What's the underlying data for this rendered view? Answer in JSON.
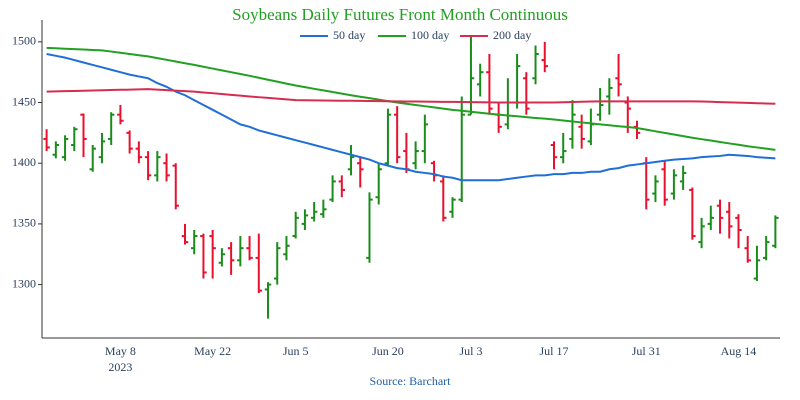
{
  "chart_data": {
    "type": "ohlc",
    "title": "Soybeans Daily Futures Front Month Continuous",
    "source": "Source: Barchart",
    "x_sublabel": "2023",
    "categories": [
      null,
      null,
      null,
      null,
      null,
      null,
      null,
      null,
      "May 8",
      null,
      null,
      null,
      null,
      null,
      null,
      null,
      null,
      null,
      "May 22",
      null,
      null,
      null,
      null,
      null,
      null,
      null,
      null,
      "Jun 5",
      null,
      null,
      null,
      null,
      null,
      null,
      null,
      null,
      null,
      "Jun 20",
      null,
      null,
      null,
      null,
      null,
      null,
      null,
      null,
      "Jul 3",
      null,
      null,
      null,
      null,
      null,
      null,
      null,
      null,
      "Jul 17",
      null,
      null,
      null,
      null,
      null,
      null,
      null,
      null,
      null,
      "Jul 31",
      null,
      null,
      null,
      null,
      null,
      null,
      null,
      null,
      null,
      "Aug 14",
      null,
      null,
      null,
      null
    ],
    "ohlc": {
      "increasing_color": "#1a8c1a",
      "decreasing_color": "#e8112d",
      "open": [
        1420,
        1407,
        1405,
        1415,
        1440,
        1395,
        1405,
        1420,
        1440,
        1425,
        1412,
        1405,
        1390,
        1400,
        1398,
        1340,
        1330,
        1340,
        1340,
        1318,
        1330,
        1320,
        1330,
        1322,
        1296,
        1305,
        1325,
        1340,
        1350,
        1355,
        1358,
        1370,
        1385,
        1395,
        1400,
        1322,
        1372,
        1400,
        1440,
        1410,
        1400,
        1410,
        1400,
        1385,
        1360,
        1370,
        1440,
        1465,
        1475,
        1440,
        1432,
        1450,
        1470,
        1470,
        1485,
        1415,
        1405,
        1420,
        1430,
        1418,
        1440,
        1455,
        1470,
        1450,
        1430,
        1400,
        1375,
        1395,
        1375,
        1385,
        1378,
        1335,
        1350,
        1365,
        1360,
        1355,
        1330,
        1305,
        1322,
        1332
      ],
      "high": [
        1428,
        1418,
        1423,
        1430,
        1441,
        1415,
        1425,
        1442,
        1448,
        1427,
        1418,
        1410,
        1410,
        1408,
        1400,
        1350,
        1345,
        1342,
        1345,
        1330,
        1335,
        1340,
        1340,
        1342,
        1302,
        1335,
        1340,
        1360,
        1362,
        1368,
        1370,
        1390,
        1390,
        1415,
        1405,
        1376,
        1400,
        1445,
        1447,
        1425,
        1418,
        1440,
        1402,
        1390,
        1372,
        1455,
        1505,
        1482,
        1490,
        1450,
        1470,
        1490,
        1475,
        1497,
        1500,
        1418,
        1425,
        1452,
        1440,
        1445,
        1462,
        1470,
        1490,
        1455,
        1435,
        1405,
        1390,
        1402,
        1395,
        1398,
        1380,
        1355,
        1365,
        1370,
        1368,
        1358,
        1340,
        1332,
        1340,
        1357
      ],
      "low": [
        1410,
        1404,
        1402,
        1410,
        1405,
        1393,
        1400,
        1415,
        1432,
        1408,
        1400,
        1386,
        1385,
        1385,
        1362,
        1333,
        1325,
        1305,
        1305,
        1315,
        1308,
        1315,
        1320,
        1293,
        1272,
        1300,
        1320,
        1338,
        1345,
        1352,
        1355,
        1368,
        1372,
        1390,
        1380,
        1318,
        1366,
        1398,
        1400,
        1392,
        1395,
        1400,
        1385,
        1352,
        1355,
        1368,
        1440,
        1455,
        1440,
        1425,
        1428,
        1445,
        1440,
        1465,
        1475,
        1395,
        1400,
        1412,
        1412,
        1415,
        1435,
        1440,
        1455,
        1425,
        1420,
        1362,
        1368,
        1365,
        1370,
        1378,
        1337,
        1330,
        1345,
        1342,
        1338,
        1330,
        1318,
        1303,
        1320,
        1330
      ],
      "close": [
        1413,
        1415,
        1420,
        1428,
        1420,
        1412,
        1418,
        1440,
        1435,
        1412,
        1405,
        1390,
        1405,
        1390,
        1365,
        1335,
        1340,
        1310,
        1330,
        1325,
        1320,
        1330,
        1322,
        1295,
        1300,
        1330,
        1332,
        1355,
        1357,
        1360,
        1362,
        1385,
        1378,
        1405,
        1395,
        1370,
        1395,
        1440,
        1405,
        1395,
        1410,
        1432,
        1390,
        1355,
        1370,
        1440,
        1470,
        1475,
        1445,
        1430,
        1450,
        1480,
        1445,
        1490,
        1480,
        1405,
        1410,
        1440,
        1420,
        1432,
        1448,
        1462,
        1465,
        1445,
        1425,
        1370,
        1385,
        1370,
        1390,
        1392,
        1340,
        1348,
        1355,
        1355,
        1348,
        1345,
        1320,
        1320,
        1335,
        1355
      ]
    },
    "series": [
      {
        "name": "50 day",
        "color": "#1f6fd6",
        "values": [
          1490,
          1488.5,
          1487,
          1485,
          1483,
          1481,
          1479,
          1477,
          1475,
          1473,
          1471.5,
          1470,
          1466,
          1463,
          1459,
          1456,
          1452,
          1448,
          1444,
          1440,
          1436,
          1432,
          1430,
          1427,
          1425,
          1423,
          1421,
          1419,
          1417,
          1415,
          1413,
          1411,
          1409,
          1407,
          1405,
          1403,
          1400,
          1398,
          1396,
          1395,
          1393,
          1392,
          1391,
          1389,
          1388,
          1386,
          1386,
          1386,
          1386,
          1386,
          1387,
          1388,
          1389,
          1390,
          1390,
          1391,
          1391,
          1392,
          1392,
          1393,
          1393,
          1395,
          1396,
          1398,
          1399,
          1400,
          1401,
          1402,
          1403,
          1403.5,
          1404,
          1405,
          1405.5,
          1406,
          1407,
          1406.5,
          1406,
          1405,
          1404.5,
          1404
        ]
      },
      {
        "name": "100 day",
        "color": "#22a022",
        "values": [
          1495,
          1494.7,
          1494.3,
          1494,
          1493.7,
          1493.3,
          1493,
          1492,
          1491,
          1490,
          1489,
          1488,
          1486.6,
          1485.2,
          1483.8,
          1482.4,
          1481,
          1479.5,
          1478,
          1476.5,
          1475,
          1473.5,
          1472,
          1470.4,
          1468.8,
          1467.2,
          1465.6,
          1464,
          1462.7,
          1461.3,
          1460,
          1458.7,
          1457.3,
          1456,
          1454.8,
          1453.6,
          1452.4,
          1451.2,
          1450,
          1449,
          1448,
          1447,
          1446,
          1445,
          1444,
          1443.2,
          1442.4,
          1441.6,
          1440.8,
          1440,
          1439.3,
          1438.7,
          1438,
          1437.3,
          1436.7,
          1436,
          1435.2,
          1434.4,
          1433.6,
          1432.8,
          1432,
          1431.3,
          1430.5,
          1429.8,
          1429,
          1427.7,
          1426.3,
          1425,
          1423.7,
          1422.3,
          1421,
          1419.8,
          1418.7,
          1417.5,
          1416.3,
          1415.2,
          1414,
          1413,
          1412,
          1411
        ]
      },
      {
        "name": "200 day",
        "color": "#d62d4f",
        "values": [
          1459,
          1459.2,
          1459.4,
          1459.5,
          1459.7,
          1459.9,
          1460.1,
          1460.3,
          1460.5,
          1460.6,
          1460.8,
          1461,
          1460.6,
          1460.2,
          1459.8,
          1459.4,
          1459,
          1458.3,
          1457.7,
          1457,
          1456.3,
          1455.7,
          1455,
          1454.4,
          1453.8,
          1453.2,
          1452.6,
          1452,
          1451.9,
          1451.8,
          1451.7,
          1451.6,
          1451.5,
          1451.5,
          1451.4,
          1451.3,
          1451.2,
          1451.1,
          1451,
          1450.9,
          1450.8,
          1450.7,
          1450.6,
          1450.5,
          1450.5,
          1450.4,
          1450.3,
          1450.2,
          1450.1,
          1450,
          1450,
          1450,
          1450,
          1450,
          1450,
          1450,
          1450.2,
          1450.4,
          1450.6,
          1450.8,
          1451,
          1451,
          1451,
          1451,
          1451,
          1451,
          1451,
          1451,
          1451,
          1451,
          1451,
          1450.8,
          1450.6,
          1450.3,
          1450.1,
          1449.9,
          1449.7,
          1449.4,
          1449.2,
          1449
        ]
      }
    ],
    "ylim": [
      1256,
      1518
    ],
    "yticks": [
      1300,
      1350,
      1400,
      1450,
      1500
    ],
    "title_color": "#22a022",
    "source_color": "#1f5fa8",
    "grid": false
  }
}
